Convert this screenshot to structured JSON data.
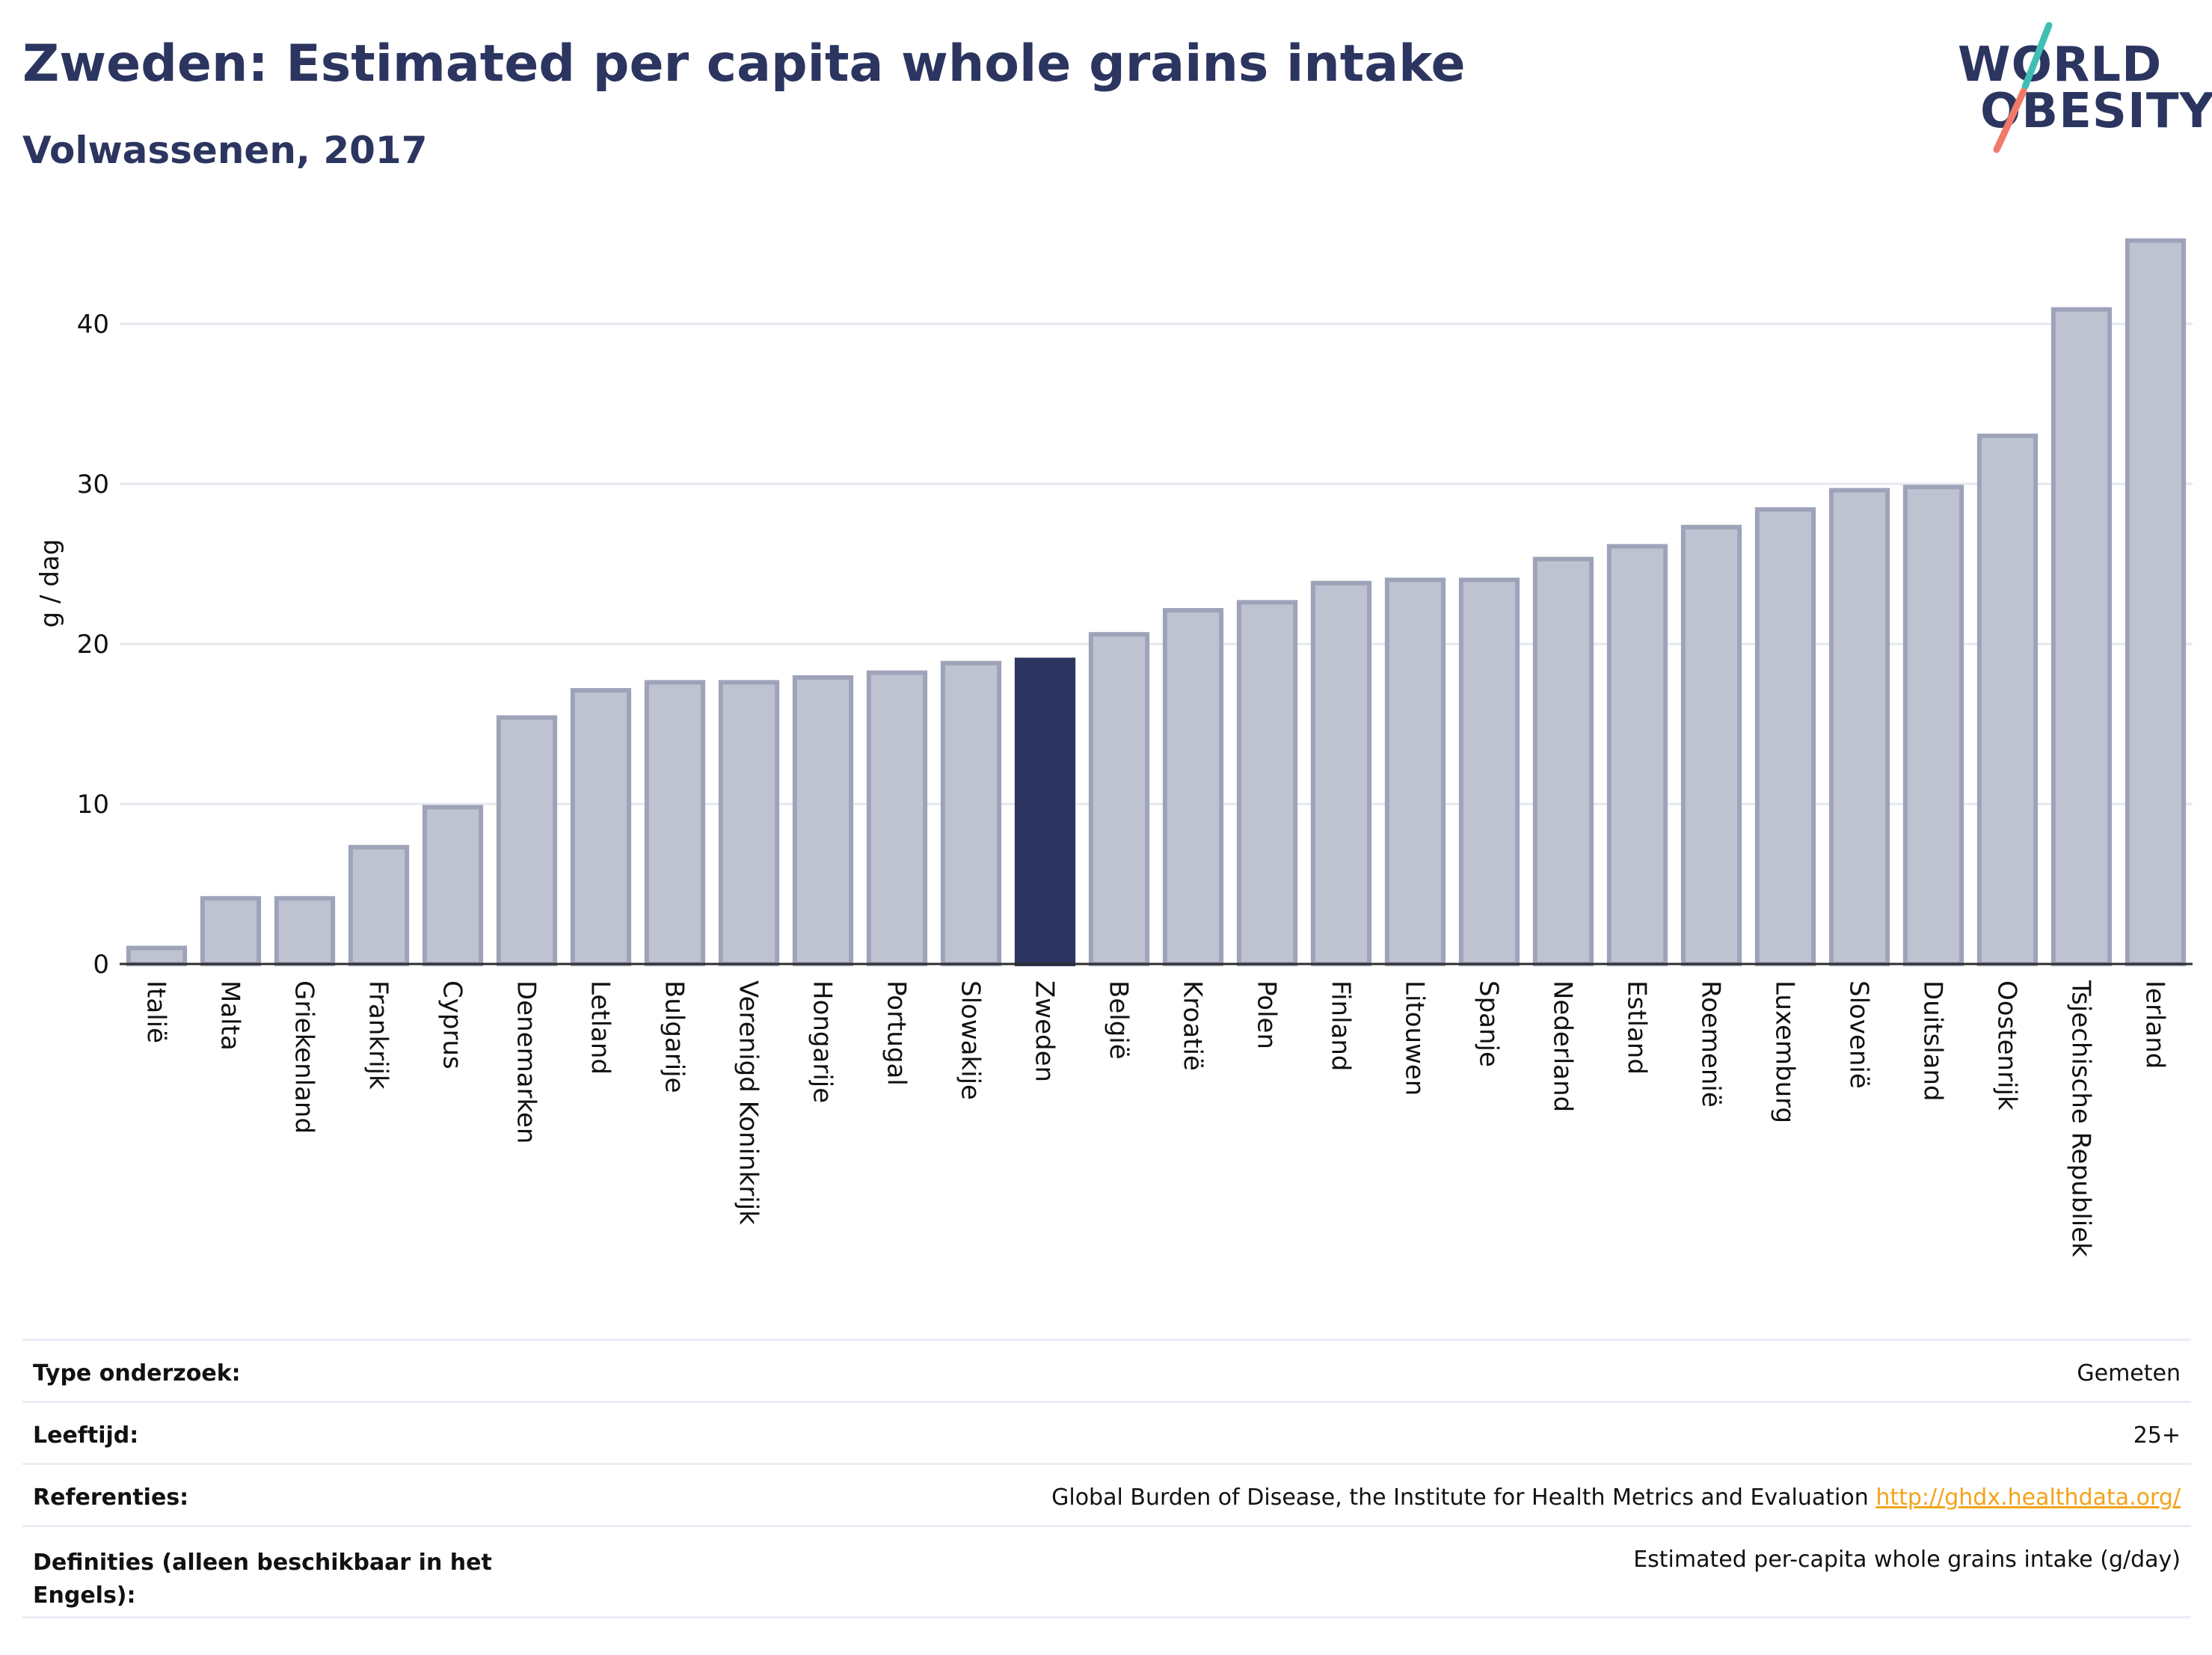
{
  "header": {
    "title": "Zweden: Estimated per capita whole grains intake",
    "subtitle": "Volwassenen, 2017"
  },
  "logo": {
    "line1": "WORLD",
    "line2": "OBESITY"
  },
  "chart_data": {
    "type": "bar",
    "ylabel": "g / dag",
    "ylim": [
      0,
      46.5
    ],
    "yticks": [
      0,
      10,
      20,
      30,
      40
    ],
    "grid": true,
    "highlight": "Zweden",
    "colors": {
      "bar": "#bfc3d1",
      "bar_border": "#9ea3ba",
      "highlight": "#2b3560",
      "grid": "#e6e8ef"
    },
    "categories": [
      "Italië",
      "Malta",
      "Griekenland",
      "Frankrijk",
      "Cyprus",
      "Denemarken",
      "Letland",
      "Bulgarije",
      "Verenigd Koninkrijk",
      "Hongarije",
      "Portugal",
      "Slowakije",
      "Zweden",
      "België",
      "Kroatië",
      "Polen",
      "Finland",
      "Litouwen",
      "Spanje",
      "Nederland",
      "Estland",
      "Roemenië",
      "Luxemburg",
      "Slovenië",
      "Duitsland",
      "Oostenrijk",
      "Tsjechische Republiek",
      "Ierland"
    ],
    "values": [
      1.0,
      4.1,
      4.1,
      7.3,
      9.8,
      15.4,
      17.1,
      17.6,
      17.6,
      17.9,
      18.2,
      18.8,
      19.0,
      20.6,
      22.1,
      22.6,
      23.8,
      24.0,
      24.0,
      25.3,
      26.1,
      27.3,
      28.4,
      29.6,
      29.8,
      33.0,
      40.9,
      45.2
    ]
  },
  "info": {
    "rows": [
      {
        "label": "Type onderzoek:",
        "value": "Gemeten"
      },
      {
        "label": "Leeftijd:",
        "value": "25+"
      },
      {
        "label": "Referenties:",
        "value": "Global Burden of Disease, the Institute for Health Metrics and Evaluation",
        "link": "http://ghdx.healthdata.org/"
      },
      {
        "label": "Definities (alleen beschikbaar in het Engels):",
        "value": "Estimated per-capita whole grains intake (g/day)"
      }
    ]
  }
}
